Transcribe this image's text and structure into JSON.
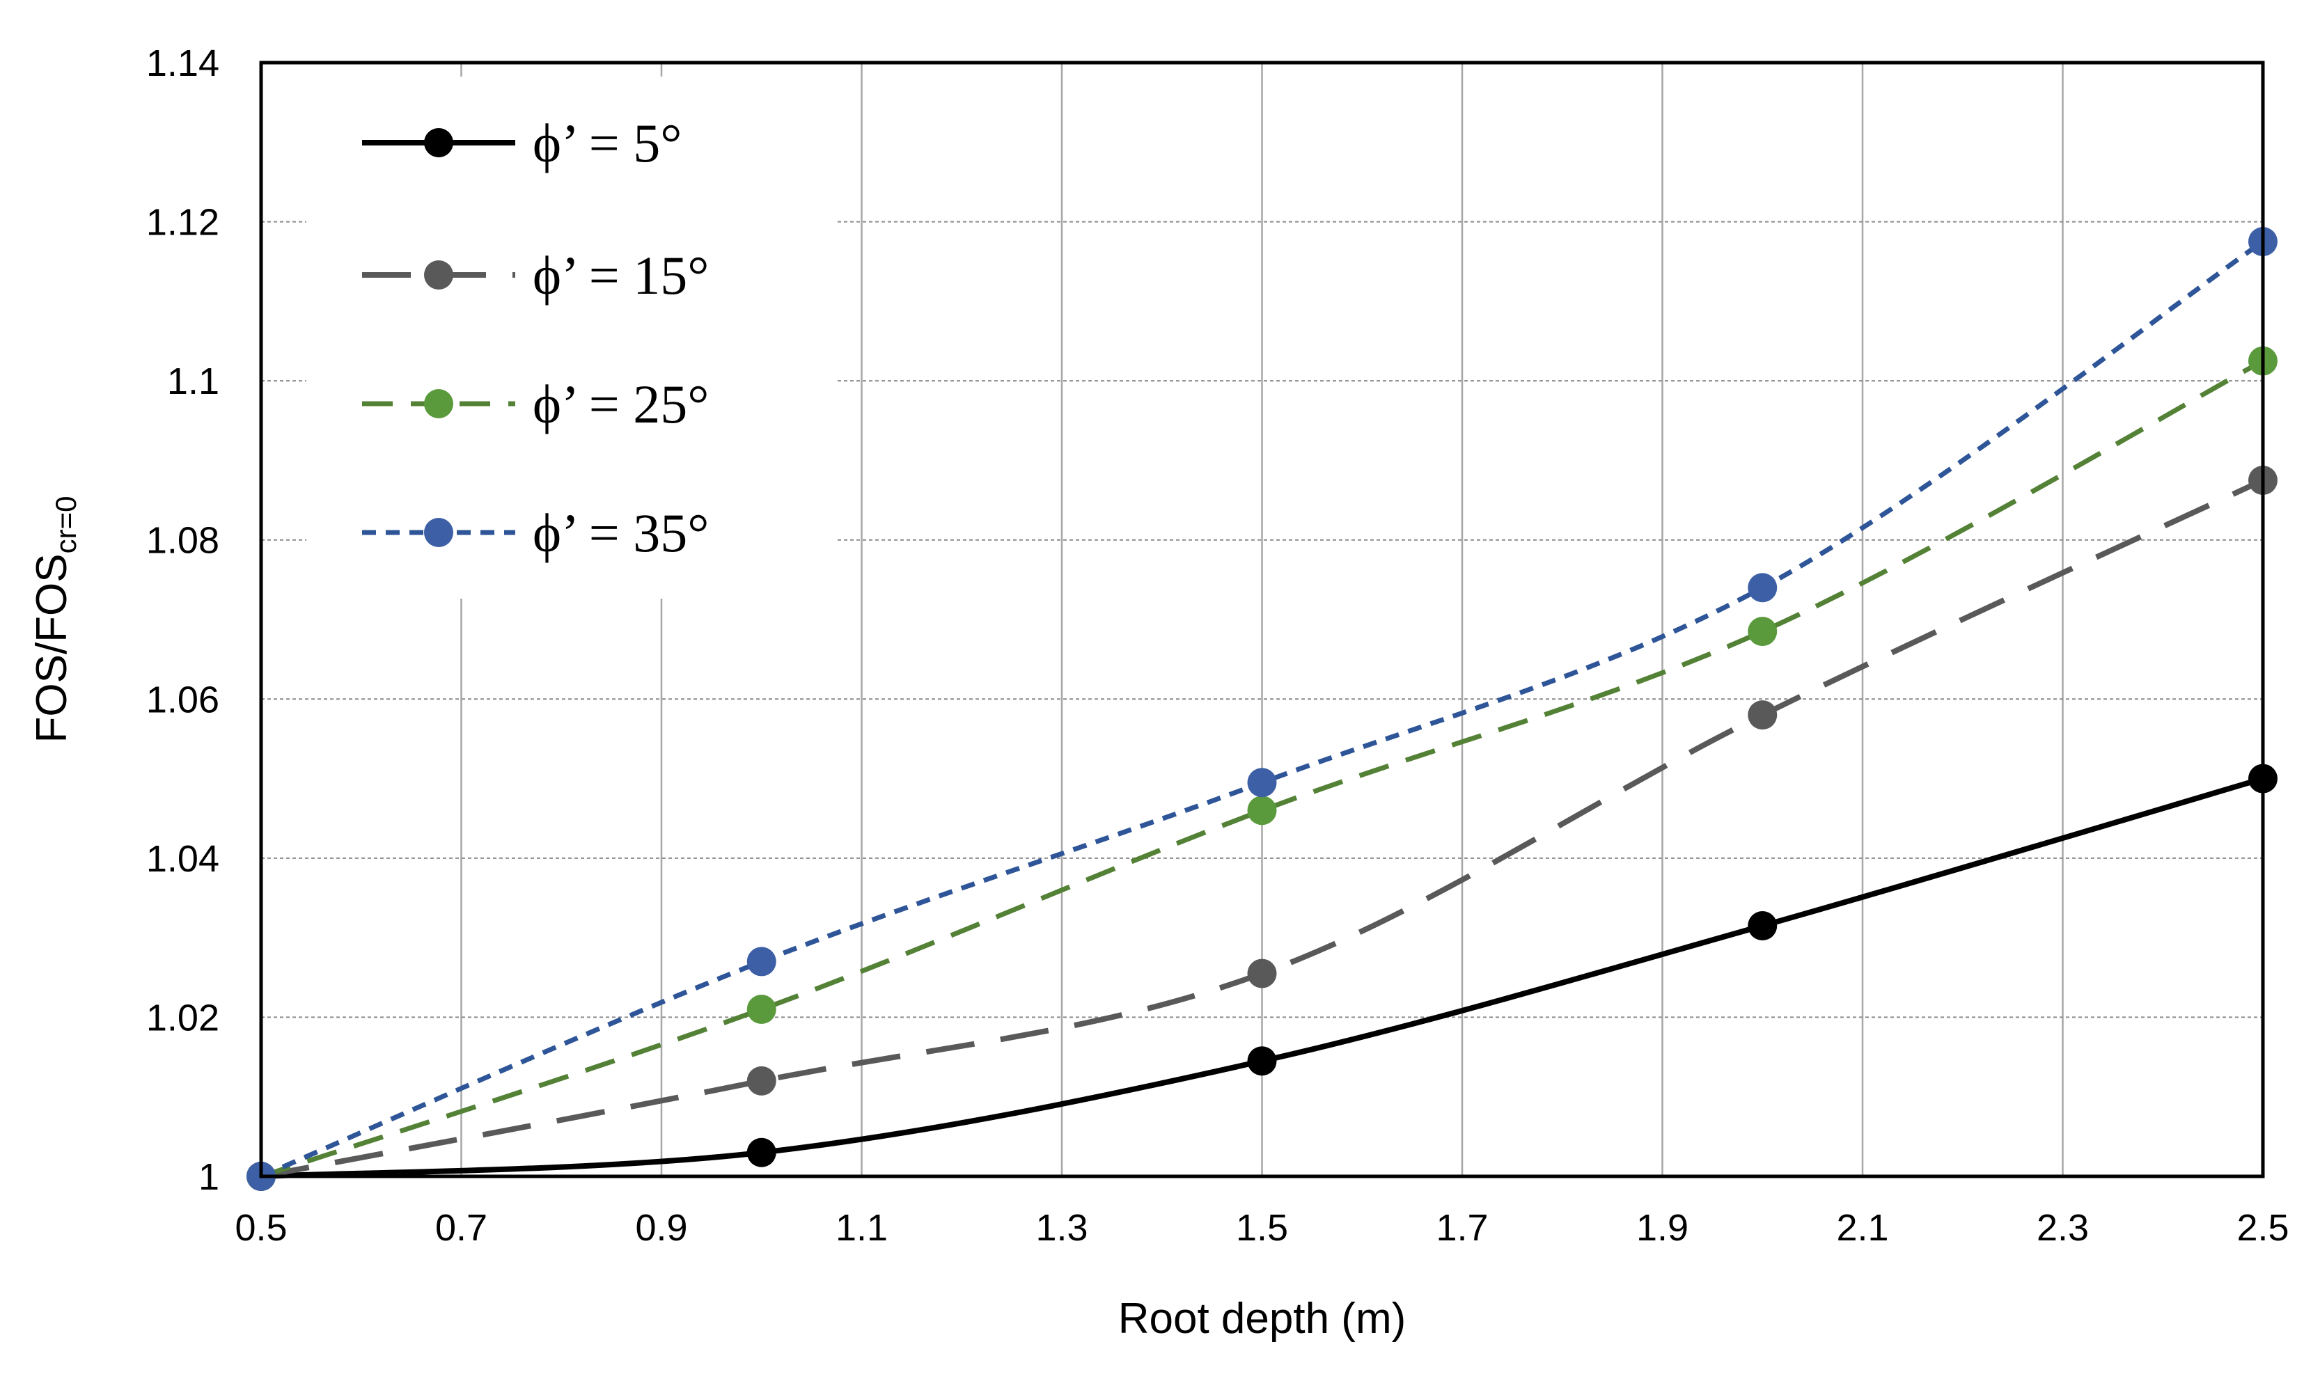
{
  "chart_data": {
    "type": "line",
    "title": "",
    "xlabel": "Root depth (m)",
    "ylabel": {
      "main": "FOS/FOS",
      "subscript": "cr=0"
    },
    "xlim": [
      0.5,
      2.5
    ],
    "ylim": [
      1.0,
      1.14
    ],
    "xticks": [
      "0.5",
      "0.7",
      "0.9",
      "1.1",
      "1.3",
      "1.5",
      "1.7",
      "1.9",
      "2.1",
      "2.3",
      "2.5"
    ],
    "yticks": [
      "1",
      "1.02",
      "1.04",
      "1.06",
      "1.08",
      "1.1",
      "1.12",
      "1.14"
    ],
    "grid": true,
    "legend_position": "top-left",
    "x": [
      0.5,
      1.0,
      1.5,
      2.0,
      2.5
    ],
    "series": [
      {
        "name": "ϕ’ = 5°",
        "values": [
          1.0,
          1.003,
          1.0145,
          1.0315,
          1.05
        ],
        "color": "#000000",
        "marker_color": "#000000",
        "dash": "none"
      },
      {
        "name": "ϕ’ = 15°",
        "values": [
          1.0,
          1.012,
          1.0255,
          1.058,
          1.0875
        ],
        "color": "#595959",
        "marker_color": "#595959",
        "dash": "long"
      },
      {
        "name": "ϕ’ = 25°",
        "values": [
          1.0,
          1.021,
          1.046,
          1.0685,
          1.1025
        ],
        "color": "#538135",
        "marker_color": "#5b9a3c",
        "dash": "medium"
      },
      {
        "name": "ϕ’ = 35°",
        "values": [
          1.0,
          1.027,
          1.0495,
          1.074,
          1.1175
        ],
        "color": "#2e5597",
        "marker_color": "#3d5fa6",
        "dash": "short"
      }
    ]
  }
}
